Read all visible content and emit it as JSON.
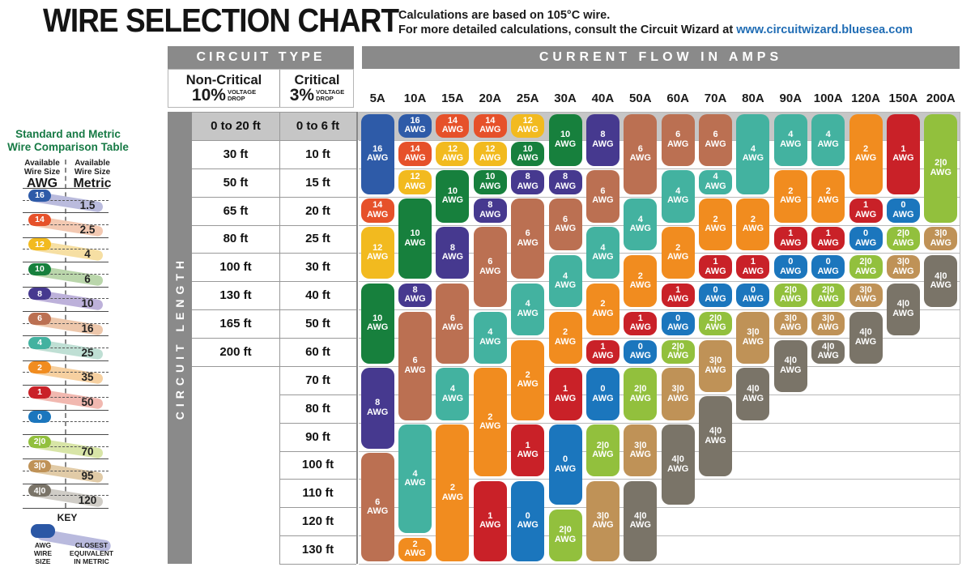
{
  "header": {
    "title": "WIRE SELECTION CHART",
    "subtitle_line1": "Calculations are based on 105°C wire.",
    "subtitle_line2": "For more detailed calculations, consult the Circuit Wizard at",
    "link": "www.circuitwizard.bluesea.com"
  },
  "table": {
    "circuit_type_label": "CIRCUIT TYPE",
    "current_flow_label": "CURRENT FLOW IN AMPS",
    "circuit_length_label": "CIRCUIT LENGTH",
    "non_critical": {
      "name": "Non-Critical",
      "percent": "10%",
      "voltage_drop": "VOLTAGE\nDROP"
    },
    "critical": {
      "name": "Critical",
      "percent": "3%",
      "voltage_drop": "VOLTAGE\nDROP"
    }
  },
  "chart_data": {
    "type": "table",
    "title": "WIRE SELECTION CHART",
    "x_header": "CURRENT FLOW IN AMPS",
    "y_header": "CIRCUIT LENGTH",
    "wire_suffix": "AWG",
    "amps": [
      "5A",
      "10A",
      "15A",
      "20A",
      "25A",
      "30A",
      "40A",
      "50A",
      "60A",
      "70A",
      "80A",
      "90A",
      "100A",
      "120A",
      "150A",
      "200A"
    ],
    "length_rows": [
      {
        "non_critical": "0 to 20 ft",
        "critical": "0 to 6 ft"
      },
      {
        "non_critical": "30 ft",
        "critical": "10 ft"
      },
      {
        "non_critical": "50 ft",
        "critical": "15 ft"
      },
      {
        "non_critical": "65 ft",
        "critical": "20 ft"
      },
      {
        "non_critical": "80 ft",
        "critical": "25 ft"
      },
      {
        "non_critical": "100 ft",
        "critical": "30 ft"
      },
      {
        "non_critical": "130 ft",
        "critical": "40 ft"
      },
      {
        "non_critical": "165 ft",
        "critical": "50 ft"
      },
      {
        "non_critical": "200 ft",
        "critical": "60 ft"
      },
      {
        "non_critical": "",
        "critical": "70 ft"
      },
      {
        "non_critical": "",
        "critical": "80 ft"
      },
      {
        "non_critical": "",
        "critical": "90 ft"
      },
      {
        "non_critical": "",
        "critical": "100 ft"
      },
      {
        "non_critical": "",
        "critical": "110 ft"
      },
      {
        "non_critical": "",
        "critical": "120 ft"
      },
      {
        "non_critical": "",
        "critical": "130 ft"
      }
    ],
    "columns": [
      {
        "amp": "5A",
        "segments": [
          {
            "awg": "16",
            "from": 1,
            "to": 3
          },
          {
            "awg": "14",
            "from": 4,
            "to": 4
          },
          {
            "awg": "12",
            "from": 5,
            "to": 6
          },
          {
            "awg": "10",
            "from": 7,
            "to": 9
          },
          {
            "awg": "8",
            "from": 10,
            "to": 12
          },
          {
            "awg": "6",
            "from": 13,
            "to": 16
          }
        ]
      },
      {
        "amp": "10A",
        "segments": [
          {
            "awg": "16",
            "from": 1,
            "to": 1
          },
          {
            "awg": "14",
            "from": 2,
            "to": 2
          },
          {
            "awg": "12",
            "from": 3,
            "to": 3
          },
          {
            "awg": "10",
            "from": 4,
            "to": 6
          },
          {
            "awg": "8",
            "from": 7,
            "to": 7
          },
          {
            "awg": "6",
            "from": 8,
            "to": 11
          },
          {
            "awg": "4",
            "from": 12,
            "to": 15
          },
          {
            "awg": "2",
            "from": 16,
            "to": 16
          }
        ]
      },
      {
        "amp": "15A",
        "segments": [
          {
            "awg": "14",
            "from": 1,
            "to": 1
          },
          {
            "awg": "12",
            "from": 2,
            "to": 2
          },
          {
            "awg": "10",
            "from": 3,
            "to": 4
          },
          {
            "awg": "8",
            "from": 5,
            "to": 6
          },
          {
            "awg": "6",
            "from": 7,
            "to": 9
          },
          {
            "awg": "4",
            "from": 10,
            "to": 11
          },
          {
            "awg": "2",
            "from": 12,
            "to": 16
          }
        ]
      },
      {
        "amp": "20A",
        "segments": [
          {
            "awg": "14",
            "from": 1,
            "to": 1
          },
          {
            "awg": "12",
            "from": 2,
            "to": 2
          },
          {
            "awg": "10",
            "from": 3,
            "to": 3
          },
          {
            "awg": "8",
            "from": 4,
            "to": 4
          },
          {
            "awg": "6",
            "from": 5,
            "to": 7
          },
          {
            "awg": "4",
            "from": 8,
            "to": 9
          },
          {
            "awg": "2",
            "from": 10,
            "to": 13
          },
          {
            "awg": "1",
            "from": 14,
            "to": 16
          }
        ]
      },
      {
        "amp": "25A",
        "segments": [
          {
            "awg": "12",
            "from": 1,
            "to": 1
          },
          {
            "awg": "10",
            "from": 2,
            "to": 2
          },
          {
            "awg": "8",
            "from": 3,
            "to": 3
          },
          {
            "awg": "6",
            "from": 4,
            "to": 6
          },
          {
            "awg": "4",
            "from": 7,
            "to": 8
          },
          {
            "awg": "2",
            "from": 9,
            "to": 11
          },
          {
            "awg": "1",
            "from": 12,
            "to": 13
          },
          {
            "awg": "0",
            "from": 14,
            "to": 16
          }
        ]
      },
      {
        "amp": "30A",
        "segments": [
          {
            "awg": "10",
            "from": 1,
            "to": 2
          },
          {
            "awg": "8",
            "from": 3,
            "to": 3
          },
          {
            "awg": "6",
            "from": 4,
            "to": 5
          },
          {
            "awg": "4",
            "from": 6,
            "to": 7
          },
          {
            "awg": "2",
            "from": 8,
            "to": 9
          },
          {
            "awg": "1",
            "from": 10,
            "to": 11
          },
          {
            "awg": "0",
            "from": 12,
            "to": 14
          },
          {
            "awg": "2|0",
            "from": 15,
            "to": 16
          }
        ]
      },
      {
        "amp": "40A",
        "segments": [
          {
            "awg": "8",
            "from": 1,
            "to": 2
          },
          {
            "awg": "6",
            "from": 3,
            "to": 4
          },
          {
            "awg": "4",
            "from": 5,
            "to": 6
          },
          {
            "awg": "2",
            "from": 7,
            "to": 8
          },
          {
            "awg": "1",
            "from": 9,
            "to": 9
          },
          {
            "awg": "0",
            "from": 10,
            "to": 11
          },
          {
            "awg": "2|0",
            "from": 12,
            "to": 13
          },
          {
            "awg": "3|0",
            "from": 14,
            "to": 16
          }
        ]
      },
      {
        "amp": "50A",
        "segments": [
          {
            "awg": "6",
            "from": 1,
            "to": 3
          },
          {
            "awg": "4",
            "from": 4,
            "to": 5
          },
          {
            "awg": "2",
            "from": 6,
            "to": 7
          },
          {
            "awg": "1",
            "from": 8,
            "to": 8
          },
          {
            "awg": "0",
            "from": 9,
            "to": 9
          },
          {
            "awg": "2|0",
            "from": 10,
            "to": 11
          },
          {
            "awg": "3|0",
            "from": 12,
            "to": 13
          },
          {
            "awg": "4|0",
            "from": 14,
            "to": 16
          }
        ]
      },
      {
        "amp": "60A",
        "segments": [
          {
            "awg": "6",
            "from": 1,
            "to": 2
          },
          {
            "awg": "4",
            "from": 3,
            "to": 4
          },
          {
            "awg": "2",
            "from": 5,
            "to": 6
          },
          {
            "awg": "1",
            "from": 7,
            "to": 7
          },
          {
            "awg": "0",
            "from": 8,
            "to": 8
          },
          {
            "awg": "2|0",
            "from": 9,
            "to": 9
          },
          {
            "awg": "3|0",
            "from": 10,
            "to": 11
          },
          {
            "awg": "4|0",
            "from": 12,
            "to": 14
          }
        ]
      },
      {
        "amp": "70A",
        "segments": [
          {
            "awg": "6",
            "from": 1,
            "to": 2
          },
          {
            "awg": "4",
            "from": 3,
            "to": 3
          },
          {
            "awg": "2",
            "from": 4,
            "to": 5
          },
          {
            "awg": "1",
            "from": 6,
            "to": 6
          },
          {
            "awg": "0",
            "from": 7,
            "to": 7
          },
          {
            "awg": "2|0",
            "from": 8,
            "to": 8
          },
          {
            "awg": "3|0",
            "from": 9,
            "to": 10
          },
          {
            "awg": "4|0",
            "from": 11,
            "to": 13
          }
        ]
      },
      {
        "amp": "80A",
        "segments": [
          {
            "awg": "4",
            "from": 1,
            "to": 3
          },
          {
            "awg": "2",
            "from": 4,
            "to": 5
          },
          {
            "awg": "1",
            "from": 6,
            "to": 6
          },
          {
            "awg": "0",
            "from": 7,
            "to": 7
          },
          {
            "awg": "3|0",
            "from": 8,
            "to": 9
          },
          {
            "awg": "4|0",
            "from": 10,
            "to": 11
          }
        ]
      },
      {
        "amp": "90A",
        "segments": [
          {
            "awg": "4",
            "from": 1,
            "to": 2
          },
          {
            "awg": "2",
            "from": 3,
            "to": 4
          },
          {
            "awg": "1",
            "from": 5,
            "to": 5
          },
          {
            "awg": "0",
            "from": 6,
            "to": 6
          },
          {
            "awg": "2|0",
            "from": 7,
            "to": 7
          },
          {
            "awg": "3|0",
            "from": 8,
            "to": 8
          },
          {
            "awg": "4|0",
            "from": 9,
            "to": 10
          }
        ]
      },
      {
        "amp": "100A",
        "segments": [
          {
            "awg": "4",
            "from": 1,
            "to": 2
          },
          {
            "awg": "2",
            "from": 3,
            "to": 4
          },
          {
            "awg": "1",
            "from": 5,
            "to": 5
          },
          {
            "awg": "0",
            "from": 6,
            "to": 6
          },
          {
            "awg": "2|0",
            "from": 7,
            "to": 7
          },
          {
            "awg": "3|0",
            "from": 8,
            "to": 8
          },
          {
            "awg": "4|0",
            "from": 9,
            "to": 9
          }
        ]
      },
      {
        "amp": "120A",
        "segments": [
          {
            "awg": "2",
            "from": 1,
            "to": 3
          },
          {
            "awg": "1",
            "from": 4,
            "to": 4
          },
          {
            "awg": "0",
            "from": 5,
            "to": 5
          },
          {
            "awg": "2|0",
            "from": 6,
            "to": 6
          },
          {
            "awg": "3|0",
            "from": 7,
            "to": 7
          },
          {
            "awg": "4|0",
            "from": 8,
            "to": 9
          }
        ]
      },
      {
        "amp": "150A",
        "segments": [
          {
            "awg": "1",
            "from": 1,
            "to": 3
          },
          {
            "awg": "0",
            "from": 4,
            "to": 4
          },
          {
            "awg": "2|0",
            "from": 5,
            "to": 5
          },
          {
            "awg": "3|0",
            "from": 6,
            "to": 6
          },
          {
            "awg": "4|0",
            "from": 7,
            "to": 8
          }
        ]
      },
      {
        "amp": "200A",
        "segments": [
          {
            "awg": "2|0",
            "from": 1,
            "to": 4
          },
          {
            "awg": "3|0",
            "from": 5,
            "to": 5
          },
          {
            "awg": "4|0",
            "from": 6,
            "to": 7
          }
        ]
      }
    ]
  },
  "sidebar": {
    "title": "Standard and Metric\nWire Comparison Table",
    "left_header": {
      "caption": "Available\nWire Size",
      "unit": "AWG"
    },
    "right_header": {
      "caption": "Available\nWire Size",
      "unit": "Metric"
    },
    "rows": [
      {
        "awg": "16",
        "metric": "1.5"
      },
      {
        "awg": "14",
        "metric": "2.5"
      },
      {
        "awg": "12",
        "metric": "4"
      },
      {
        "awg": "10",
        "metric": "6"
      },
      {
        "awg": "8",
        "metric": "10"
      },
      {
        "awg": "6",
        "metric": "16"
      },
      {
        "awg": "4",
        "metric": "25"
      },
      {
        "awg": "2",
        "metric": "35"
      },
      {
        "awg": "1",
        "metric": "50"
      },
      {
        "awg": "0",
        "metric": ""
      },
      {
        "awg": "2|0",
        "metric": "70"
      },
      {
        "awg": "3|0",
        "metric": "95"
      },
      {
        "awg": "4|0",
        "metric": "120"
      }
    ],
    "key": {
      "title": "KEY",
      "awg_caption": "AWG\nWIRE\nSIZE",
      "metric_caption": "CLOSEST\nEQUIVALENT\nIN METRIC"
    }
  },
  "colors": {
    "header_bar": "#8a8a8a",
    "row1_band": "#c6c6c6",
    "grid_line": "#b8b8b8",
    "table_line": "#999999",
    "heavy_line": "#888888",
    "link": "#1f6cb4",
    "sidebar_title": "#177a45",
    "key_pill": "#2b57a5",
    "key_band": "#b9bade",
    "awg": {
      "16": "#2e5ba8",
      "14": "#e6512a",
      "12": "#f2ba1f",
      "10": "#17803d",
      "8": "#46398f",
      "6": "#bb7052",
      "4": "#43b2a0",
      "2": "#f18c1f",
      "1": "#c92128",
      "0": "#1b76bd",
      "2|0": "#92c03d",
      "3|0": "#bf9257",
      "4|0": "#7a7468"
    },
    "metric_bands": {
      "1.5": "#babbdd",
      "2.5": "#f3c9b2",
      "4": "#f6dfa3",
      "6": "#bad6ab",
      "10": "#bdb1da",
      "16": "#edc7ab",
      "25": "#bfdfd4",
      "35": "#f6d0a0",
      "50": "#f1b8b0",
      "70": "#d8e5a7",
      "95": "#e1cba7",
      "120": "#cfccc6"
    }
  }
}
